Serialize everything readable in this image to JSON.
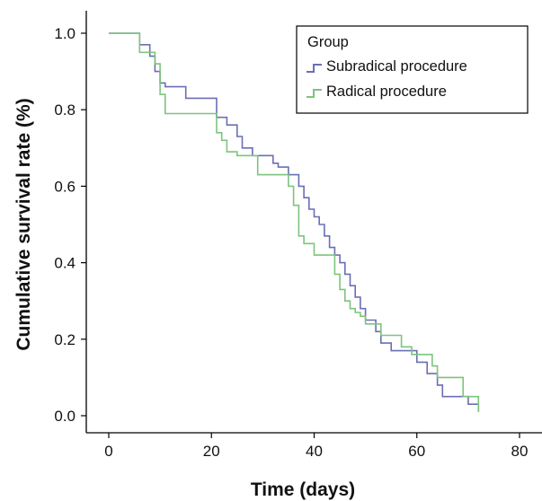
{
  "chart_data": {
    "type": "line",
    "step": true,
    "xlabel": "Time (days)",
    "ylabel": "Cumulative survival rate (%)",
    "xlim": [
      0,
      80
    ],
    "ylim": [
      0,
      1
    ],
    "x_ticks": [
      0,
      20,
      40,
      60,
      80
    ],
    "y_ticks": [
      0.0,
      0.2,
      0.4,
      0.6,
      0.8,
      1.0
    ],
    "x_tick_labels": [
      "0",
      "20",
      "40",
      "60",
      "80"
    ],
    "y_tick_labels": [
      "0.0",
      "0.2",
      "0.4",
      "0.6",
      "0.8",
      "1.0"
    ],
    "grid": false,
    "legend": {
      "title": "Group",
      "position": "top-right"
    },
    "series": [
      {
        "name": "Subradical procedure",
        "color": "#6a6fb4",
        "x": [
          0,
          6,
          8,
          9,
          10,
          11,
          13,
          15,
          21,
          23,
          25,
          26,
          28,
          32,
          33,
          35,
          37,
          38,
          39,
          40,
          41,
          42,
          43,
          44,
          45,
          46,
          47,
          48,
          49,
          50,
          52,
          53,
          55,
          56,
          60,
          62,
          64,
          65,
          68,
          70,
          72
        ],
        "y": [
          1.0,
          0.97,
          0.94,
          0.9,
          0.87,
          0.86,
          0.86,
          0.83,
          0.78,
          0.76,
          0.73,
          0.7,
          0.68,
          0.66,
          0.65,
          0.63,
          0.6,
          0.57,
          0.54,
          0.52,
          0.5,
          0.47,
          0.44,
          0.42,
          0.4,
          0.37,
          0.34,
          0.31,
          0.28,
          0.25,
          0.22,
          0.19,
          0.17,
          0.17,
          0.14,
          0.11,
          0.08,
          0.05,
          0.05,
          0.03,
          0.01
        ]
      },
      {
        "name": "Radical procedure",
        "color": "#7dc47d",
        "x": [
          0,
          6,
          9,
          10,
          11,
          13,
          21,
          22,
          23,
          24,
          25,
          26,
          29,
          34,
          35,
          36,
          37,
          38,
          40,
          44,
          45,
          46,
          47,
          48,
          49,
          50,
          53,
          54,
          57,
          58,
          59,
          63,
          64,
          69,
          72
        ],
        "y": [
          1.0,
          0.95,
          0.92,
          0.84,
          0.79,
          0.79,
          0.74,
          0.72,
          0.69,
          0.69,
          0.68,
          0.68,
          0.63,
          0.63,
          0.6,
          0.55,
          0.47,
          0.45,
          0.42,
          0.37,
          0.33,
          0.3,
          0.28,
          0.27,
          0.26,
          0.24,
          0.21,
          0.21,
          0.18,
          0.18,
          0.16,
          0.13,
          0.1,
          0.05,
          0.01
        ]
      }
    ]
  }
}
